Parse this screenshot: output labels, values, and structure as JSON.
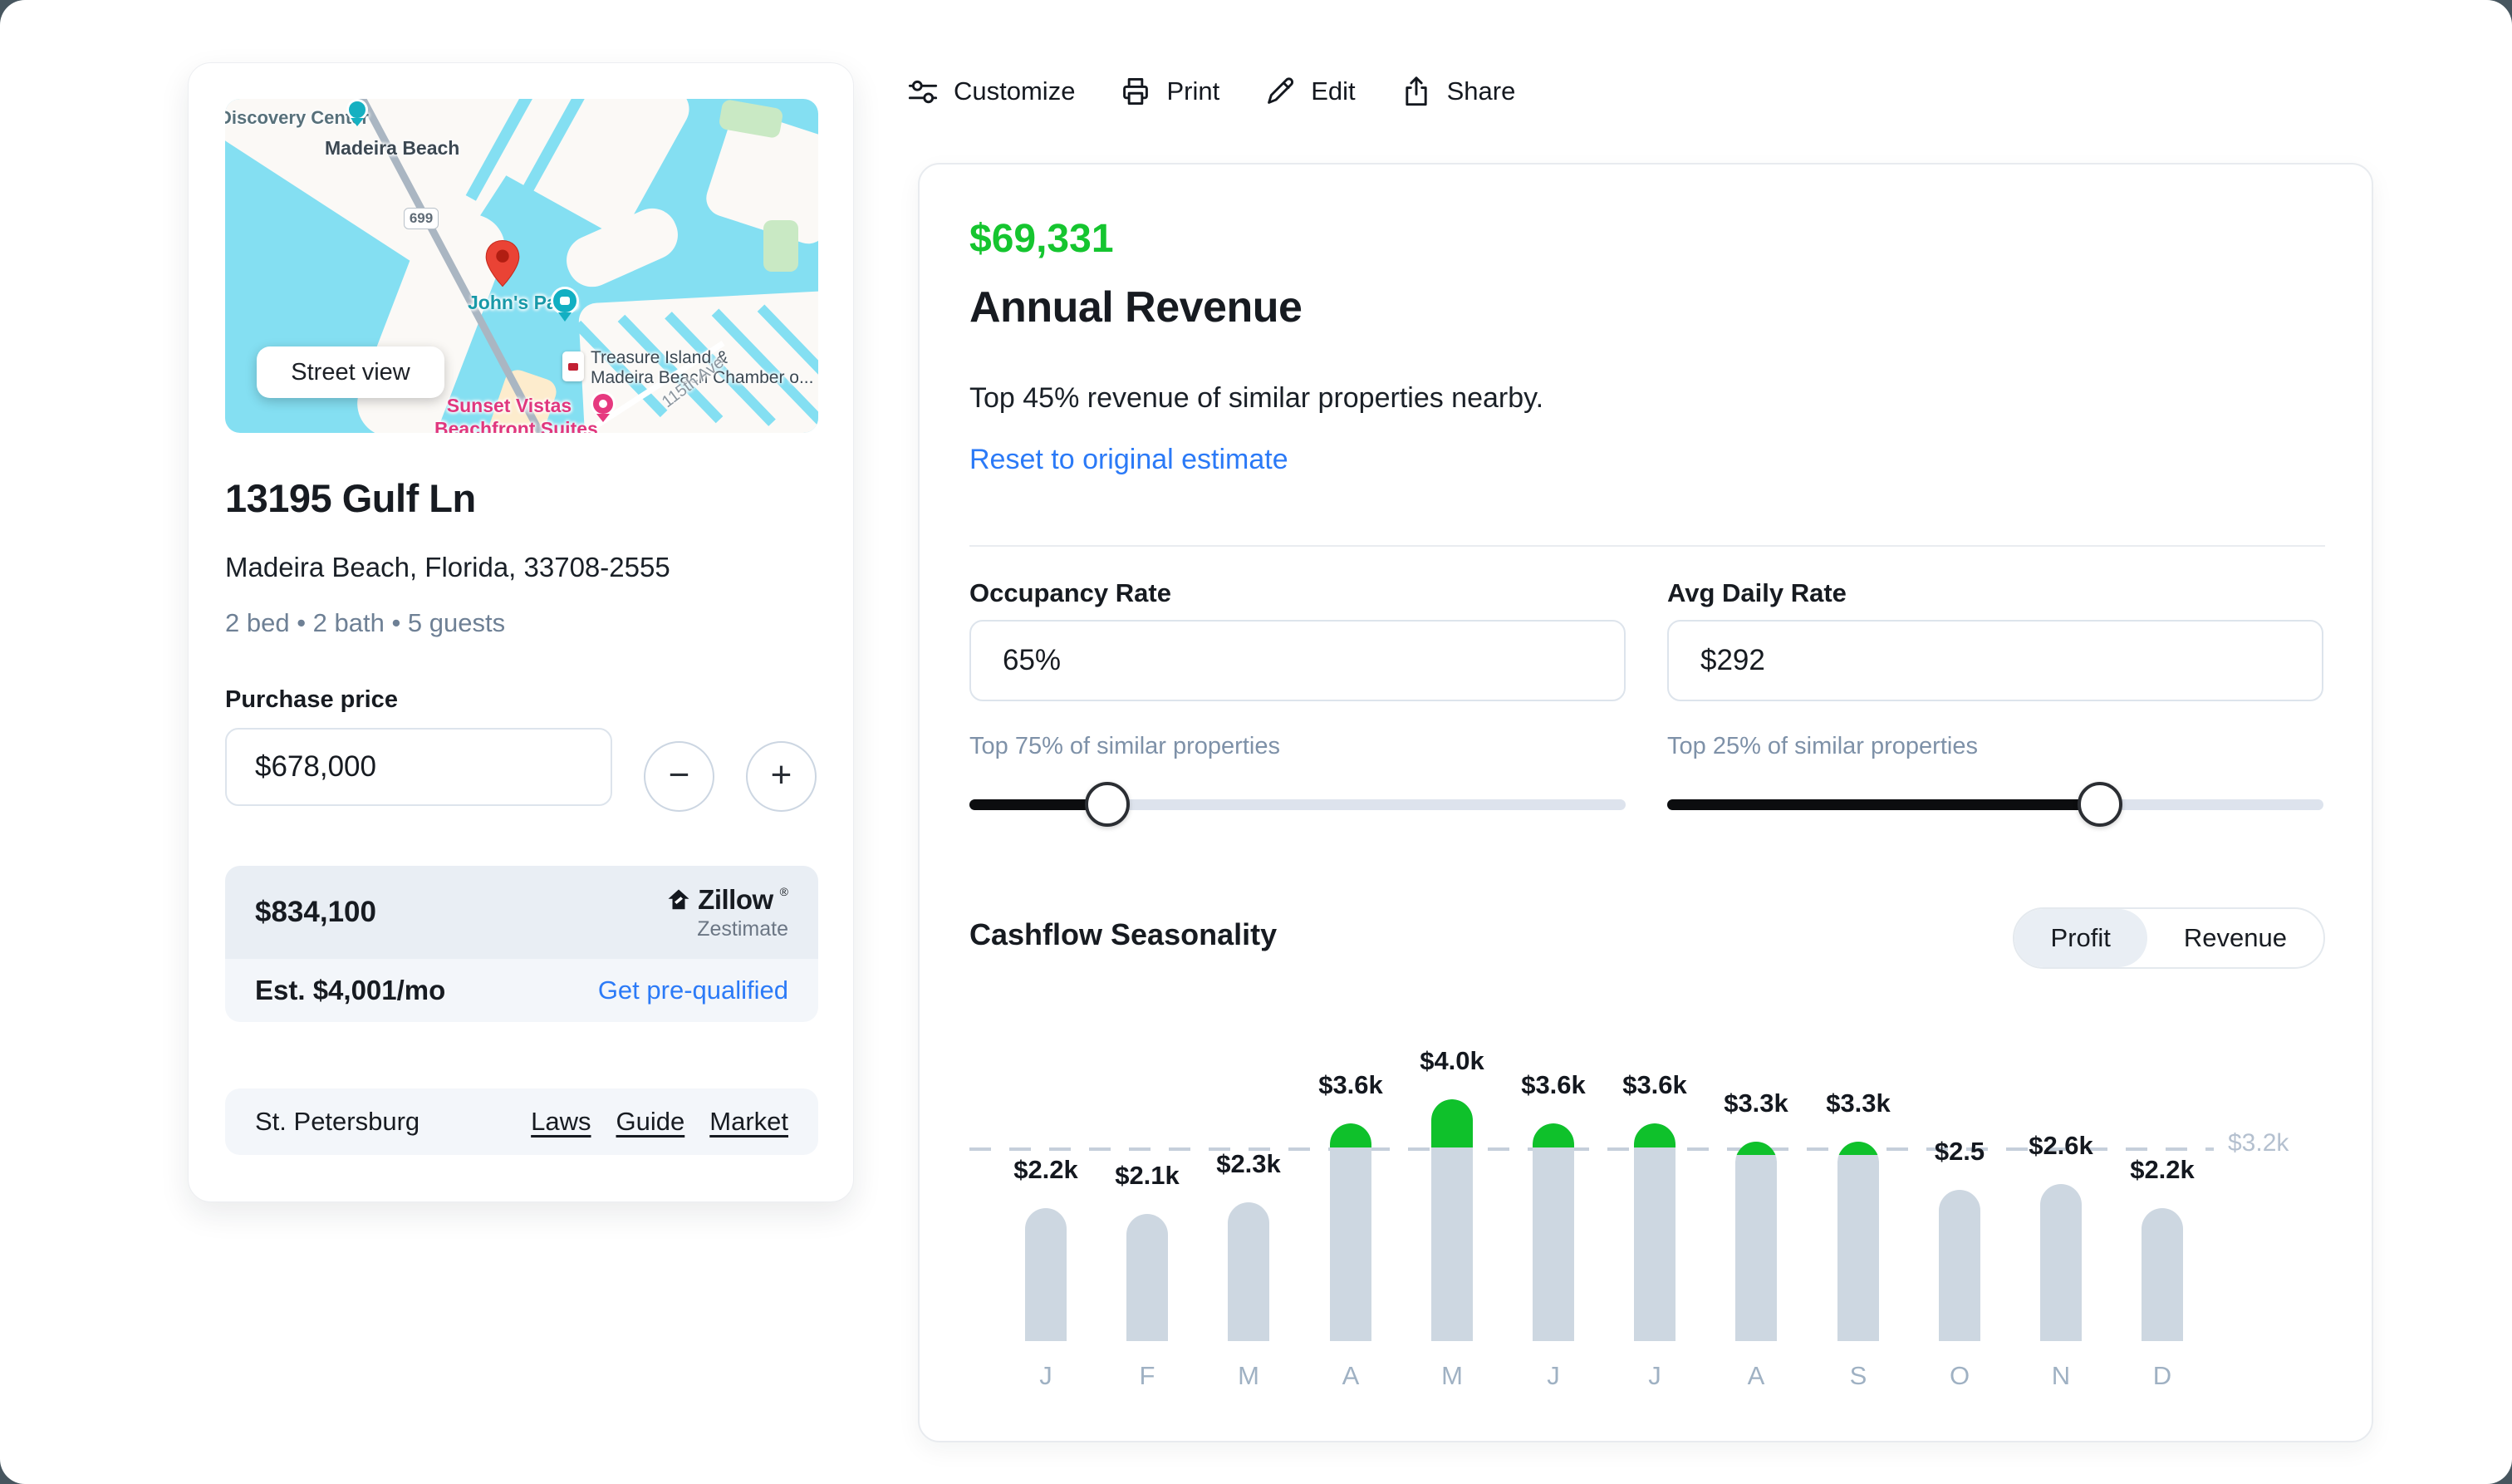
{
  "colors": {
    "accent_green": "#15c52f",
    "bar_green": "#0fc12b",
    "bar_gray": "#cdd7e1",
    "link_blue": "#2b7af7",
    "map_water": "#84dff2"
  },
  "toolbar": {
    "items": [
      {
        "label": "Customize",
        "icon": "customize-icon"
      },
      {
        "label": "Print",
        "icon": "print-icon"
      },
      {
        "label": "Edit",
        "icon": "edit-icon"
      },
      {
        "label": "Share",
        "icon": "share-icon"
      }
    ]
  },
  "property_card": {
    "map": {
      "street_view_label": "Street view",
      "labels": {
        "discovery": "Discovery Center",
        "city": "Madeira Beach",
        "route_badge": "699",
        "johns_pass": "John's Pass",
        "chamber_line1": "Treasure Island &",
        "chamber_line2": "Madeira Beach Chamber o...",
        "sunset_line1": "Sunset Vistas",
        "sunset_line2": "Beachfront Suites",
        "street": "115th Ave"
      }
    },
    "address_line1": "13195 Gulf Ln",
    "address_line2": "Madeira Beach, Florida, 33708-2555",
    "specs": "2 bed • 2 bath • 5 guests",
    "purchase_price_label": "Purchase price",
    "purchase_price_value": "$678,000",
    "stepper": {
      "minus": "−",
      "plus": "+"
    },
    "zestimate": {
      "value": "$834,100",
      "brand": "Zillow",
      "brand_reg": "®",
      "brand_sub": "Zestimate",
      "est": "Est. $4,001/mo",
      "cta": "Get pre-qualified"
    },
    "market": {
      "city": "St. Petersburg",
      "links": [
        "Laws",
        "Guide",
        "Market"
      ]
    }
  },
  "revenue_panel": {
    "amount": "$69,331",
    "title": "Annual Revenue",
    "subtitle": "Top 45% revenue of similar properties nearby.",
    "reset_link": "Reset to original estimate",
    "occupancy": {
      "label": "Occupancy Rate",
      "value": "65%",
      "caption": "Top 75% of similar properties",
      "slider_pct": 21
    },
    "adr": {
      "label": "Avg Daily Rate",
      "value": "$292",
      "caption": "Top 25% of similar properties",
      "slider_pct": 66
    },
    "seasonality": {
      "title": "Cashflow Seasonality",
      "toggle": [
        "Profit",
        "Revenue"
      ],
      "selected": "Profit"
    }
  },
  "chart_data": {
    "type": "bar",
    "title": "Cashflow Seasonality",
    "categories": [
      "J",
      "F",
      "M",
      "A",
      "M",
      "J",
      "J",
      "A",
      "S",
      "O",
      "N",
      "D"
    ],
    "values": [
      2.2,
      2.1,
      2.3,
      3.6,
      4.0,
      3.6,
      3.6,
      3.3,
      3.3,
      2.5,
      2.6,
      2.2
    ],
    "labels": [
      "$2.2k",
      "$2.1k",
      "$2.3k",
      "$3.6k",
      "$4.0k",
      "$3.6k",
      "$3.6k",
      "$3.3k",
      "$3.3k",
      "$2.5",
      "$2.6k",
      "$2.2k"
    ],
    "unit": "$k per month",
    "threshold": 3.2,
    "threshold_label": "$3.2k",
    "ylim": [
      0,
      4.4
    ],
    "grid": false,
    "legend": "none",
    "bar_color": "#cdd7e1",
    "above_threshold_color": "#0fc12b"
  }
}
